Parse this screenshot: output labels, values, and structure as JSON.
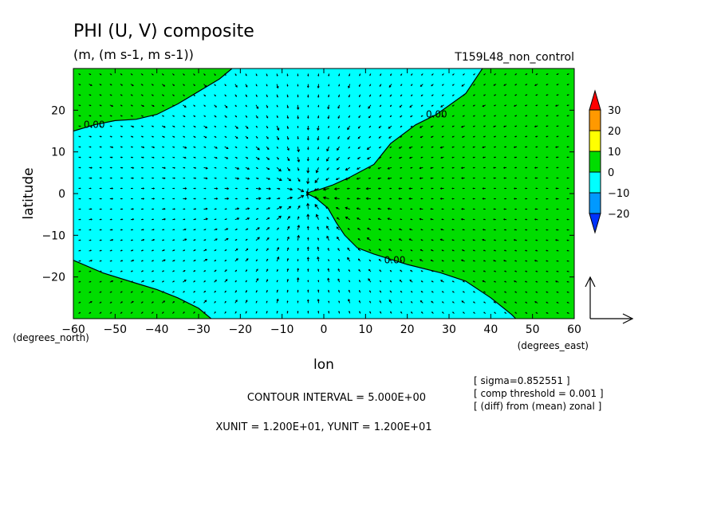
{
  "chart_data": {
    "type": "contour-vector",
    "title": "PHI (U, V) composite",
    "subtitle": "(m, (m s-1, m s-1))",
    "experiment_label": "T159L48_non_control",
    "xlabel": "lon",
    "ylabel": "latitude",
    "x_units": "(degrees_east)",
    "y_units": "(degrees_north)",
    "xlim": [
      -60,
      60
    ],
    "ylim": [
      -30,
      30
    ],
    "x_ticks": [
      -60,
      -50,
      -40,
      -30,
      -20,
      -10,
      0,
      10,
      20,
      30,
      40,
      50,
      60
    ],
    "y_ticks": [
      -20,
      -10,
      0,
      10,
      20
    ],
    "x_tick_labels": [
      "−60",
      "−50",
      "−40",
      "−30",
      "−20",
      "−10",
      "0",
      "10",
      "20",
      "30",
      "40",
      "50",
      "60"
    ],
    "y_tick_labels": [
      "−20",
      "−10",
      "0",
      "10",
      "20"
    ],
    "contour_label": "0.00",
    "contour_interval_text": "CONTOUR INTERVAL = 5.000E+00",
    "unit_text": "XUNIT = 1.200E+01, YUNIT = 1.200E+01",
    "info_lines": [
      "[ sigma=0.852551 ]",
      "[ comp threshold = 0.001 ]",
      "[ (diff) from (mean) zonal ]"
    ],
    "colorbar": {
      "labels": [
        "30",
        "20",
        "10",
        "0",
        "−10",
        "−20"
      ],
      "colors": [
        "#ff0000",
        "#ff9900",
        "#ffff00",
        "#00dd00",
        "#00ffff",
        "#0099ff",
        "#0033ff"
      ]
    },
    "region_colors": {
      "positive": "#00dd00",
      "negative": "#00ffff"
    },
    "zero_contours": [
      {
        "name": "north-west",
        "points": [
          [
            -60,
            15
          ],
          [
            -55,
            16.5
          ],
          [
            -50,
            17.5
          ],
          [
            -45,
            17.8
          ],
          [
            -40,
            19
          ],
          [
            -35,
            21.5
          ],
          [
            -30,
            24.5
          ],
          [
            -25,
            27.5
          ],
          [
            -22,
            30
          ]
        ]
      },
      {
        "name": "east",
        "points": [
          [
            38,
            30
          ],
          [
            34,
            24
          ],
          [
            27,
            19
          ],
          [
            22,
            16.5
          ],
          [
            16,
            12
          ],
          [
            12,
            7
          ],
          [
            6,
            3.8
          ],
          [
            2,
            2
          ],
          [
            -1,
            1
          ],
          [
            -3,
            0.5
          ],
          [
            -4,
            0
          ],
          [
            -2,
            -1
          ],
          [
            1,
            -3.5
          ],
          [
            3,
            -7
          ],
          [
            5,
            -10
          ],
          [
            8,
            -13
          ],
          [
            12,
            -14.5
          ],
          [
            20,
            -17
          ],
          [
            28,
            -19
          ],
          [
            34,
            -21
          ],
          [
            40,
            -25
          ],
          [
            45,
            -29
          ],
          [
            46,
            -30
          ]
        ]
      },
      {
        "name": "south-west",
        "points": [
          [
            -60,
            -16
          ],
          [
            -53,
            -19
          ],
          [
            -45,
            -21.5
          ],
          [
            -40,
            -23
          ],
          [
            -35,
            -25
          ],
          [
            -30,
            -27.5
          ],
          [
            -27,
            -30
          ]
        ]
      }
    ],
    "contour_label_positions": [
      [
        -55,
        16.5
      ],
      [
        27,
        19
      ],
      [
        17,
        -16
      ]
    ],
    "vector_field": {
      "x_step": 2.5,
      "y_step": 2.5,
      "center": [
        -4,
        0
      ]
    }
  }
}
